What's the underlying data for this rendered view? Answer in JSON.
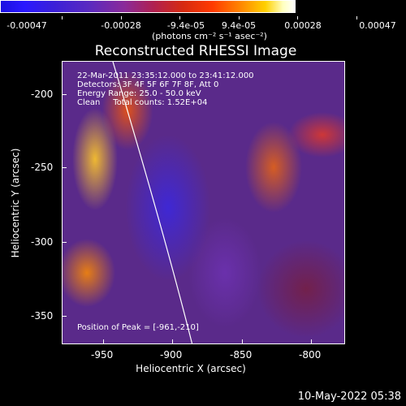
{
  "colorbar": {
    "tick_labels": [
      "-0.00047",
      "-0.00028",
      "-9.4e-05",
      "9.4e-05",
      "0.00028",
      "0.00047"
    ],
    "units": "(photons cm⁻² s⁻¹ asec⁻²)"
  },
  "title": "Reconstructed RHESSI Image",
  "info": {
    "line1": "22-Mar-2011 23:35:12.000 to 23:41:12.000",
    "line2": "Detectors: 3F 4F 5F 6F 7F 8F, Att 0",
    "line3": "Energy Range: 25.0 - 50.0 keV",
    "line4": "Clean     Total counts: 1.52E+04",
    "peak": "Position of Peak = [-961,-210]"
  },
  "axes": {
    "xlabel": "Heliocentric X (arcsec)",
    "ylabel": "Heliocentric Y (arcsec)",
    "x_ticks": [
      "-950",
      "-900",
      "-850",
      "-800"
    ],
    "y_ticks": [
      "-200",
      "-250",
      "-300",
      "-350"
    ]
  },
  "timestamp": "10-May-2022 05:38",
  "colors": {
    "background": "#000000",
    "foreground": "#ffffff",
    "limb": "#ffffff"
  }
}
